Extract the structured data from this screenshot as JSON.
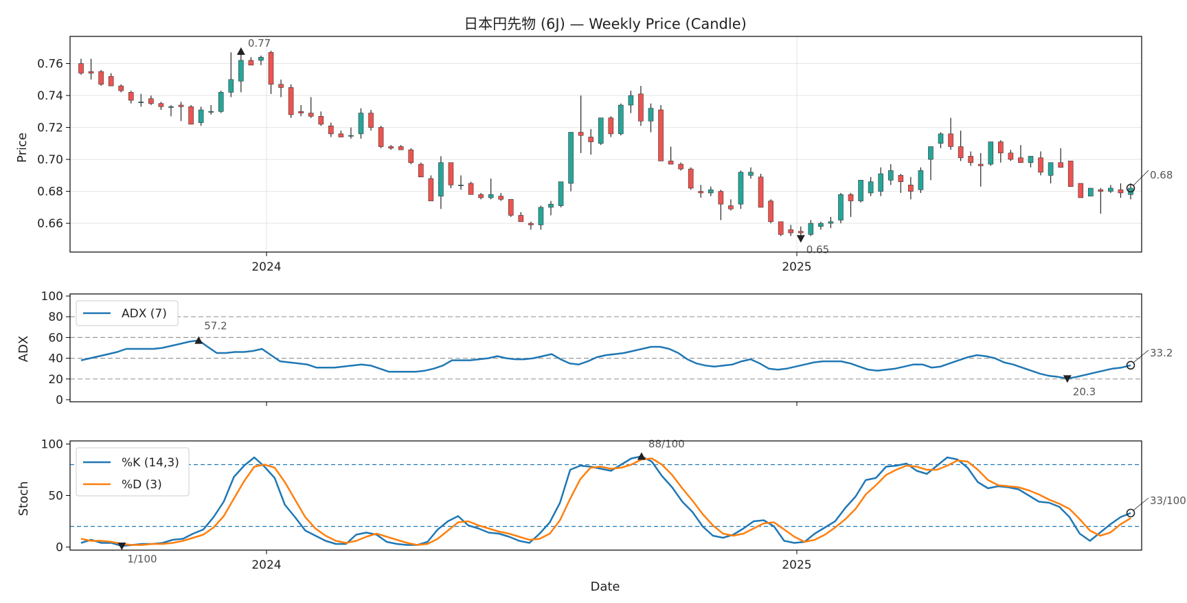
{
  "chart_data": [
    {
      "type": "candlestick",
      "title": "日本円先物 (6J) — Weekly Price (Candle)",
      "ylabel": "Price",
      "xlabel": "",
      "ylim": [
        0.642,
        0.777
      ],
      "yticks": [
        0.66,
        0.68,
        0.7,
        0.72,
        0.74,
        0.76
      ],
      "ytick_labels": [
        "0.66",
        "0.68",
        "0.70",
        "0.72",
        "0.74",
        "0.76"
      ],
      "xticks": [
        "2024",
        "2025"
      ],
      "colors": {
        "up": "#26a69a",
        "down": "#ef5350",
        "wick": "#222222"
      },
      "candles": [
        [
          0.76,
          0.763,
          0.753,
          0.754
        ],
        [
          0.755,
          0.763,
          0.75,
          0.754
        ],
        [
          0.755,
          0.756,
          0.746,
          0.747
        ],
        [
          0.752,
          0.754,
          0.746,
          0.746
        ],
        [
          0.746,
          0.747,
          0.742,
          0.743
        ],
        [
          0.742,
          0.743,
          0.735,
          0.737
        ],
        [
          0.736,
          0.741,
          0.733,
          0.736
        ],
        [
          0.738,
          0.74,
          0.734,
          0.735
        ],
        [
          0.735,
          0.736,
          0.731,
          0.733
        ],
        [
          0.733,
          0.734,
          0.727,
          0.733
        ],
        [
          0.734,
          0.736,
          0.724,
          0.733
        ],
        [
          0.733,
          0.734,
          0.722,
          0.722
        ],
        [
          0.723,
          0.733,
          0.721,
          0.731
        ],
        [
          0.73,
          0.734,
          0.728,
          0.73
        ],
        [
          0.73,
          0.743,
          0.729,
          0.742
        ],
        [
          0.742,
          0.767,
          0.739,
          0.75
        ],
        [
          0.749,
          0.768,
          0.742,
          0.762
        ],
        [
          0.762,
          0.764,
          0.759,
          0.759
        ],
        [
          0.762,
          0.765,
          0.759,
          0.764
        ],
        [
          0.767,
          0.768,
          0.741,
          0.747
        ],
        [
          0.747,
          0.75,
          0.739,
          0.745
        ],
        [
          0.745,
          0.747,
          0.726,
          0.728
        ],
        [
          0.73,
          0.734,
          0.727,
          0.729
        ],
        [
          0.729,
          0.739,
          0.726,
          0.727
        ],
        [
          0.727,
          0.73,
          0.721,
          0.722
        ],
        [
          0.721,
          0.723,
          0.714,
          0.716
        ],
        [
          0.716,
          0.718,
          0.714,
          0.714
        ],
        [
          0.715,
          0.72,
          0.713,
          0.715
        ],
        [
          0.716,
          0.732,
          0.713,
          0.729
        ],
        [
          0.729,
          0.731,
          0.718,
          0.72
        ],
        [
          0.72,
          0.721,
          0.707,
          0.708
        ],
        [
          0.708,
          0.709,
          0.706,
          0.707
        ],
        [
          0.708,
          0.709,
          0.706,
          0.706
        ],
        [
          0.706,
          0.707,
          0.697,
          0.698
        ],
        [
          0.697,
          0.698,
          0.689,
          0.689
        ],
        [
          0.688,
          0.69,
          0.674,
          0.674
        ],
        [
          0.677,
          0.702,
          0.669,
          0.698
        ],
        [
          0.698,
          0.698,
          0.682,
          0.684
        ],
        [
          0.684,
          0.69,
          0.681,
          0.684
        ],
        [
          0.685,
          0.686,
          0.678,
          0.678
        ],
        [
          0.678,
          0.679,
          0.675,
          0.676
        ],
        [
          0.676,
          0.688,
          0.675,
          0.678
        ],
        [
          0.677,
          0.679,
          0.674,
          0.675
        ],
        [
          0.675,
          0.675,
          0.664,
          0.665
        ],
        [
          0.665,
          0.667,
          0.661,
          0.661
        ],
        [
          0.66,
          0.661,
          0.656,
          0.659
        ],
        [
          0.659,
          0.671,
          0.656,
          0.67
        ],
        [
          0.67,
          0.674,
          0.665,
          0.672
        ],
        [
          0.671,
          0.686,
          0.67,
          0.686
        ],
        [
          0.685,
          0.717,
          0.68,
          0.717
        ],
        [
          0.717,
          0.74,
          0.704,
          0.715
        ],
        [
          0.714,
          0.719,
          0.703,
          0.711
        ],
        [
          0.71,
          0.726,
          0.709,
          0.726
        ],
        [
          0.726,
          0.727,
          0.714,
          0.716
        ],
        [
          0.716,
          0.735,
          0.715,
          0.734
        ],
        [
          0.734,
          0.743,
          0.729,
          0.74
        ],
        [
          0.741,
          0.746,
          0.721,
          0.724
        ],
        [
          0.724,
          0.735,
          0.717,
          0.732
        ],
        [
          0.731,
          0.734,
          0.699,
          0.699
        ],
        [
          0.699,
          0.708,
          0.697,
          0.697
        ],
        [
          0.697,
          0.698,
          0.693,
          0.694
        ],
        [
          0.694,
          0.695,
          0.681,
          0.682
        ],
        [
          0.68,
          0.684,
          0.676,
          0.679
        ],
        [
          0.679,
          0.683,
          0.677,
          0.681
        ],
        [
          0.68,
          0.681,
          0.662,
          0.672
        ],
        [
          0.671,
          0.675,
          0.668,
          0.669
        ],
        [
          0.672,
          0.693,
          0.669,
          0.692
        ],
        [
          0.69,
          0.695,
          0.688,
          0.692
        ],
        [
          0.689,
          0.691,
          0.67,
          0.67
        ],
        [
          0.674,
          0.675,
          0.66,
          0.661
        ],
        [
          0.661,
          0.661,
          0.652,
          0.653
        ],
        [
          0.656,
          0.659,
          0.652,
          0.654
        ],
        [
          0.655,
          0.658,
          0.65,
          0.654
        ],
        [
          0.653,
          0.662,
          0.652,
          0.66
        ],
        [
          0.658,
          0.661,
          0.656,
          0.66
        ],
        [
          0.66,
          0.664,
          0.657,
          0.661
        ],
        [
          0.662,
          0.679,
          0.66,
          0.678
        ],
        [
          0.678,
          0.679,
          0.664,
          0.674
        ],
        [
          0.674,
          0.687,
          0.673,
          0.687
        ],
        [
          0.679,
          0.689,
          0.677,
          0.686
        ],
        [
          0.68,
          0.695,
          0.677,
          0.691
        ],
        [
          0.687,
          0.697,
          0.684,
          0.693
        ],
        [
          0.69,
          0.691,
          0.679,
          0.686
        ],
        [
          0.684,
          0.689,
          0.675,
          0.68
        ],
        [
          0.681,
          0.695,
          0.679,
          0.693
        ],
        [
          0.7,
          0.707,
          0.687,
          0.708
        ],
        [
          0.71,
          0.717,
          0.707,
          0.716
        ],
        [
          0.716,
          0.726,
          0.706,
          0.708
        ],
        [
          0.708,
          0.718,
          0.699,
          0.701
        ],
        [
          0.702,
          0.705,
          0.696,
          0.698
        ],
        [
          0.697,
          0.704,
          0.683,
          0.696
        ],
        [
          0.697,
          0.711,
          0.696,
          0.711
        ],
        [
          0.711,
          0.712,
          0.698,
          0.704
        ],
        [
          0.704,
          0.706,
          0.699,
          0.7
        ],
        [
          0.701,
          0.709,
          0.698,
          0.698
        ],
        [
          0.698,
          0.702,
          0.695,
          0.702
        ],
        [
          0.701,
          0.705,
          0.69,
          0.692
        ],
        [
          0.69,
          0.698,
          0.685,
          0.698
        ],
        [
          0.698,
          0.707,
          0.695,
          0.695
        ],
        [
          0.699,
          0.699,
          0.683,
          0.683
        ],
        [
          0.685,
          0.685,
          0.676,
          0.676
        ],
        [
          0.677,
          0.681,
          0.677,
          0.682
        ],
        [
          0.681,
          0.682,
          0.666,
          0.68
        ],
        [
          0.68,
          0.684,
          0.679,
          0.682
        ],
        [
          0.681,
          0.685,
          0.676,
          0.679
        ],
        [
          0.678,
          0.685,
          0.675,
          0.682
        ]
      ],
      "annotations": {
        "high_label": "0.77",
        "low_label": "0.65",
        "last_label": "0.68"
      }
    },
    {
      "type": "line",
      "ylabel": "ADX",
      "ylim": [
        -2,
        102
      ],
      "yticks": [
        0,
        20,
        40,
        60,
        80,
        100
      ],
      "ytick_labels": [
        "0",
        "20",
        "40",
        "60",
        "80",
        "100"
      ],
      "reference_lines": [
        20,
        40,
        60,
        80
      ],
      "legend": "top-left",
      "series": [
        {
          "name": "ADX (7)",
          "color": "#1f77b4",
          "values": [
            38,
            40,
            42,
            44,
            46,
            49,
            49,
            49,
            49,
            50,
            52,
            54,
            56,
            57.2,
            51,
            45,
            45,
            46,
            46,
            47,
            49,
            43,
            37,
            36,
            35,
            34,
            31,
            31,
            31,
            32,
            33,
            34,
            33,
            30,
            27,
            27,
            27,
            27,
            28,
            30,
            33,
            38,
            38,
            38,
            39,
            40,
            42,
            40,
            39,
            39,
            40,
            42,
            44,
            39,
            35,
            34,
            37,
            41,
            43,
            44,
            45,
            47,
            49,
            51,
            51,
            49,
            45,
            39,
            35,
            33,
            32,
            33,
            34,
            37,
            39,
            35,
            30,
            29,
            30,
            32,
            34,
            36,
            37,
            37,
            37,
            35,
            32,
            29,
            28,
            29,
            30,
            32,
            34,
            34,
            31,
            32,
            35,
            38,
            41,
            43,
            42,
            40,
            36,
            34,
            31,
            28,
            25,
            23,
            22,
            20.3,
            22,
            24,
            26,
            28,
            30,
            31,
            33.2
          ]
        }
      ],
      "annotations": {
        "high_label": "57.2",
        "low_label": "20.3",
        "last_label": "33.2"
      }
    },
    {
      "type": "line",
      "ylabel": "Stoch",
      "xlabel": "Date",
      "ylim": [
        -3,
        103
      ],
      "yticks": [
        0,
        50,
        100
      ],
      "ytick_labels": [
        "0",
        "50",
        "100"
      ],
      "xticks": [
        "2024",
        "2025"
      ],
      "reference_lines": [
        20,
        80
      ],
      "legend": "top-left",
      "series": [
        {
          "name": "%K (14,3)",
          "color": "#1f77b4",
          "values": [
            4,
            7,
            4,
            4,
            1,
            2,
            3,
            3,
            4,
            7,
            8,
            13,
            17,
            29,
            44,
            68,
            79,
            87,
            78,
            67,
            41,
            29,
            16,
            11,
            6,
            3,
            3,
            12,
            14,
            12,
            5,
            3,
            2,
            2,
            5,
            17,
            25,
            30,
            21,
            18,
            14,
            13,
            10,
            6,
            4,
            13,
            24,
            43,
            75,
            79,
            78,
            76,
            74,
            80,
            86,
            88,
            83,
            69,
            58,
            44,
            34,
            20,
            11,
            9,
            12,
            18,
            25,
            26,
            20,
            6,
            4,
            5,
            13,
            19,
            25,
            38,
            49,
            65,
            67,
            78,
            79,
            81,
            74,
            71,
            79,
            87,
            85,
            77,
            63,
            57,
            59,
            58,
            56,
            50,
            44,
            43,
            39,
            29,
            13,
            6,
            14,
            22,
            29,
            33
          ]
        },
        {
          "name": "%D (3)",
          "color": "#ff7f0e",
          "values": [
            8,
            6,
            6,
            5,
            3,
            2,
            2,
            3,
            3,
            4,
            6,
            9,
            12,
            19,
            30,
            47,
            64,
            78,
            80,
            77,
            63,
            46,
            29,
            18,
            11,
            6,
            4,
            6,
            10,
            13,
            10,
            7,
            4,
            2,
            3,
            8,
            16,
            24,
            25,
            21,
            18,
            15,
            13,
            10,
            7,
            8,
            13,
            26,
            47,
            66,
            77,
            78,
            76,
            77,
            80,
            85,
            86,
            80,
            70,
            57,
            45,
            32,
            21,
            13,
            11,
            13,
            18,
            23,
            24,
            17,
            10,
            5,
            7,
            12,
            19,
            27,
            37,
            51,
            60,
            70,
            75,
            79,
            78,
            75,
            75,
            79,
            84,
            83,
            75,
            65,
            60,
            59,
            58,
            55,
            51,
            46,
            42,
            37,
            27,
            16,
            11,
            14,
            22,
            28
          ]
        }
      ],
      "annotations": {
        "high_label": "88/100",
        "low_label": "1/100",
        "last_label": "33/100"
      }
    }
  ]
}
